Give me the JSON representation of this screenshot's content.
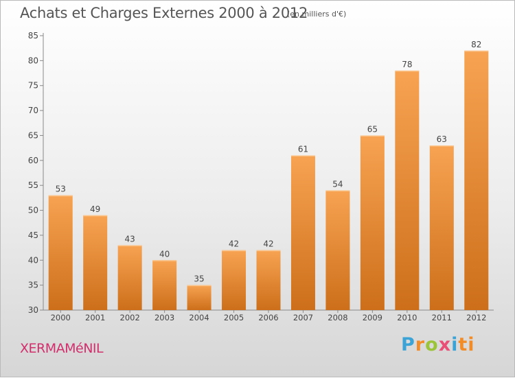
{
  "header": {
    "title": "Achats et Charges Externes 2000 à 2012",
    "subtitle": "(en milliers d'€)"
  },
  "footer": {
    "commune": "XERMAMéNIL",
    "brand_letters": [
      "P",
      "r",
      "o",
      "x",
      "i",
      "ti"
    ]
  },
  "colors": {
    "bar_top": "#f7a352",
    "bar_bottom": "#cd6f1a",
    "axis": "#888888",
    "text": "#444444",
    "commune": "#d12e6b"
  },
  "chart_data": {
    "type": "bar",
    "title": "Achats et Charges Externes 2000 à 2012",
    "subtitle": "(en milliers d'€)",
    "categories": [
      "2000",
      "2001",
      "2002",
      "2003",
      "2004",
      "2005",
      "2006",
      "2007",
      "2008",
      "2009",
      "2010",
      "2011",
      "2012"
    ],
    "values": [
      53,
      49,
      43,
      40,
      35,
      42,
      42,
      61,
      54,
      65,
      78,
      63,
      82
    ],
    "ylim": [
      30,
      85
    ],
    "yticks": [
      30,
      35,
      40,
      45,
      50,
      55,
      60,
      65,
      70,
      75,
      80,
      85
    ],
    "xlabel": "",
    "ylabel": "",
    "grid": false,
    "legend": "none"
  }
}
